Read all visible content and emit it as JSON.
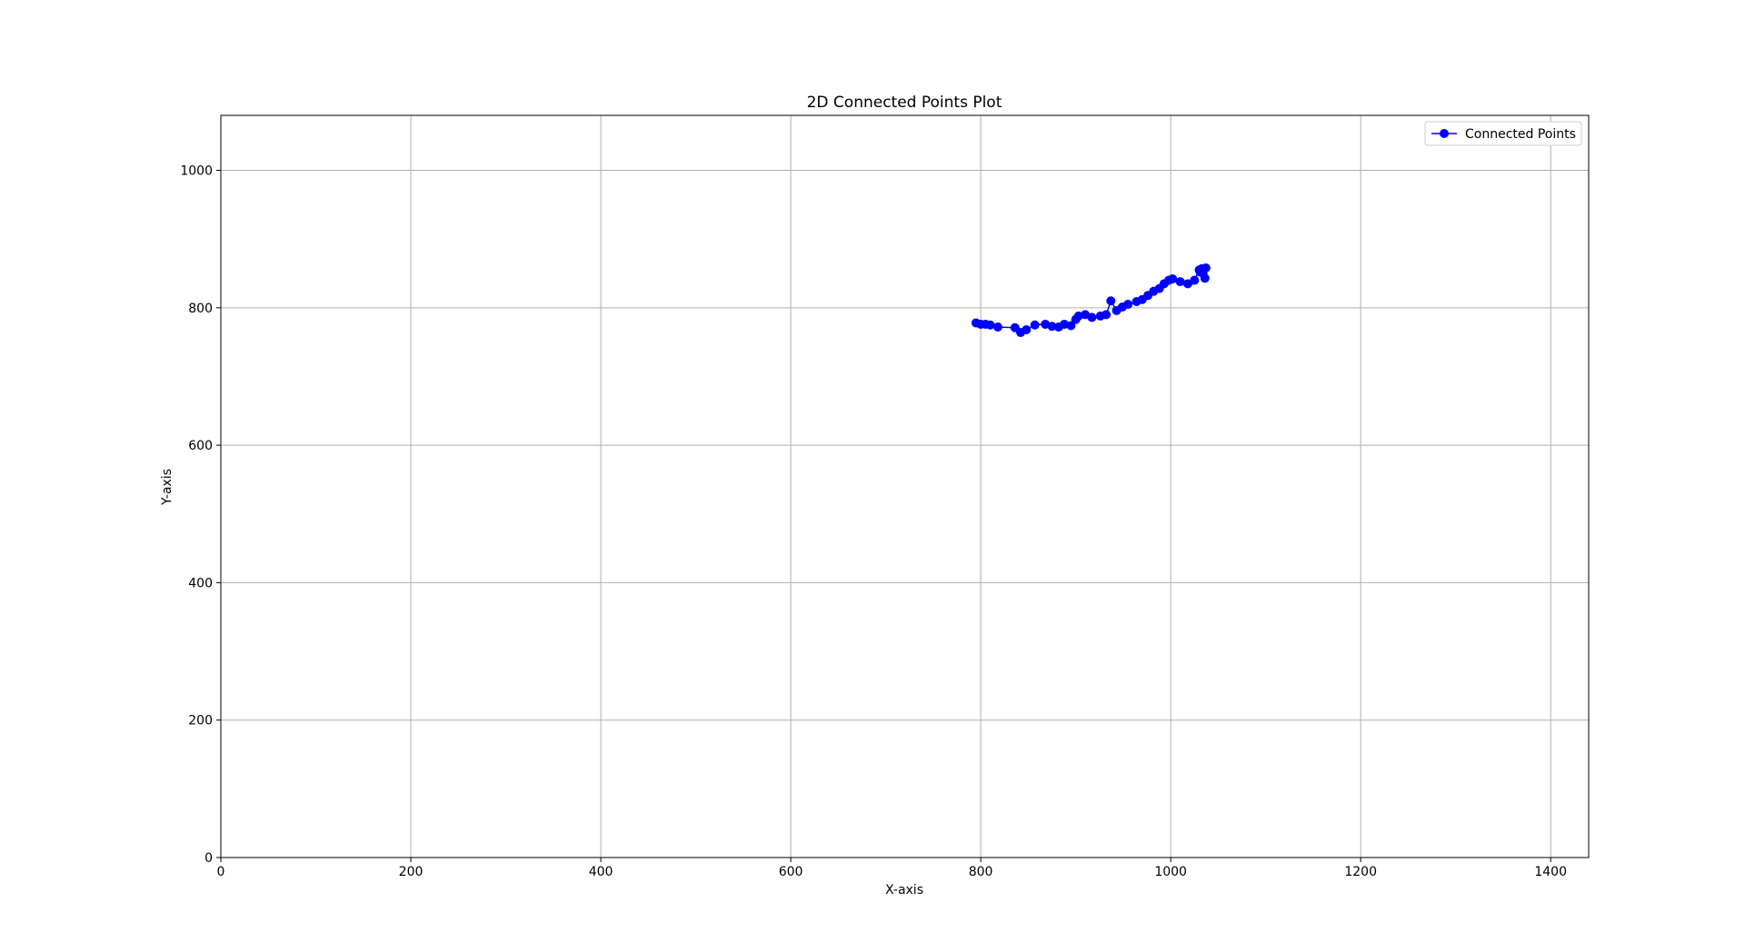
{
  "chart_data": {
    "type": "line",
    "title": "2D Connected Points Plot",
    "xlabel": "X-axis",
    "ylabel": "Y-axis",
    "xlim": [
      0,
      1440
    ],
    "ylim": [
      0,
      1080
    ],
    "xticks": [
      0,
      200,
      400,
      600,
      800,
      1000,
      1200,
      1400
    ],
    "yticks": [
      0,
      200,
      400,
      600,
      800,
      1000
    ],
    "grid": true,
    "legend_position": "top-right",
    "series": [
      {
        "name": "Connected Points",
        "color": "#0000ff",
        "marker": "circle",
        "points": [
          [
            795,
            778
          ],
          [
            800,
            776
          ],
          [
            805,
            776
          ],
          [
            810,
            775
          ],
          [
            818,
            772
          ],
          [
            836,
            771
          ],
          [
            842,
            764
          ],
          [
            848,
            768
          ],
          [
            857,
            775
          ],
          [
            868,
            776
          ],
          [
            875,
            773
          ],
          [
            882,
            772
          ],
          [
            888,
            776
          ],
          [
            895,
            774
          ],
          [
            900,
            783
          ],
          [
            903,
            788
          ],
          [
            910,
            790
          ],
          [
            917,
            786
          ],
          [
            926,
            788
          ],
          [
            932,
            790
          ],
          [
            937,
            810
          ],
          [
            943,
            796
          ],
          [
            949,
            801
          ],
          [
            955,
            805
          ],
          [
            964,
            809
          ],
          [
            970,
            812
          ],
          [
            976,
            818
          ],
          [
            982,
            824
          ],
          [
            988,
            828
          ],
          [
            993,
            835
          ],
          [
            998,
            840
          ],
          [
            1002,
            842
          ],
          [
            1010,
            838
          ],
          [
            1018,
            835
          ],
          [
            1025,
            840
          ],
          [
            1030,
            855
          ],
          [
            1033,
            857
          ],
          [
            1036,
            843
          ],
          [
            1034,
            850
          ],
          [
            1037,
            858
          ],
          [
            1031,
            852
          ]
        ]
      }
    ]
  }
}
